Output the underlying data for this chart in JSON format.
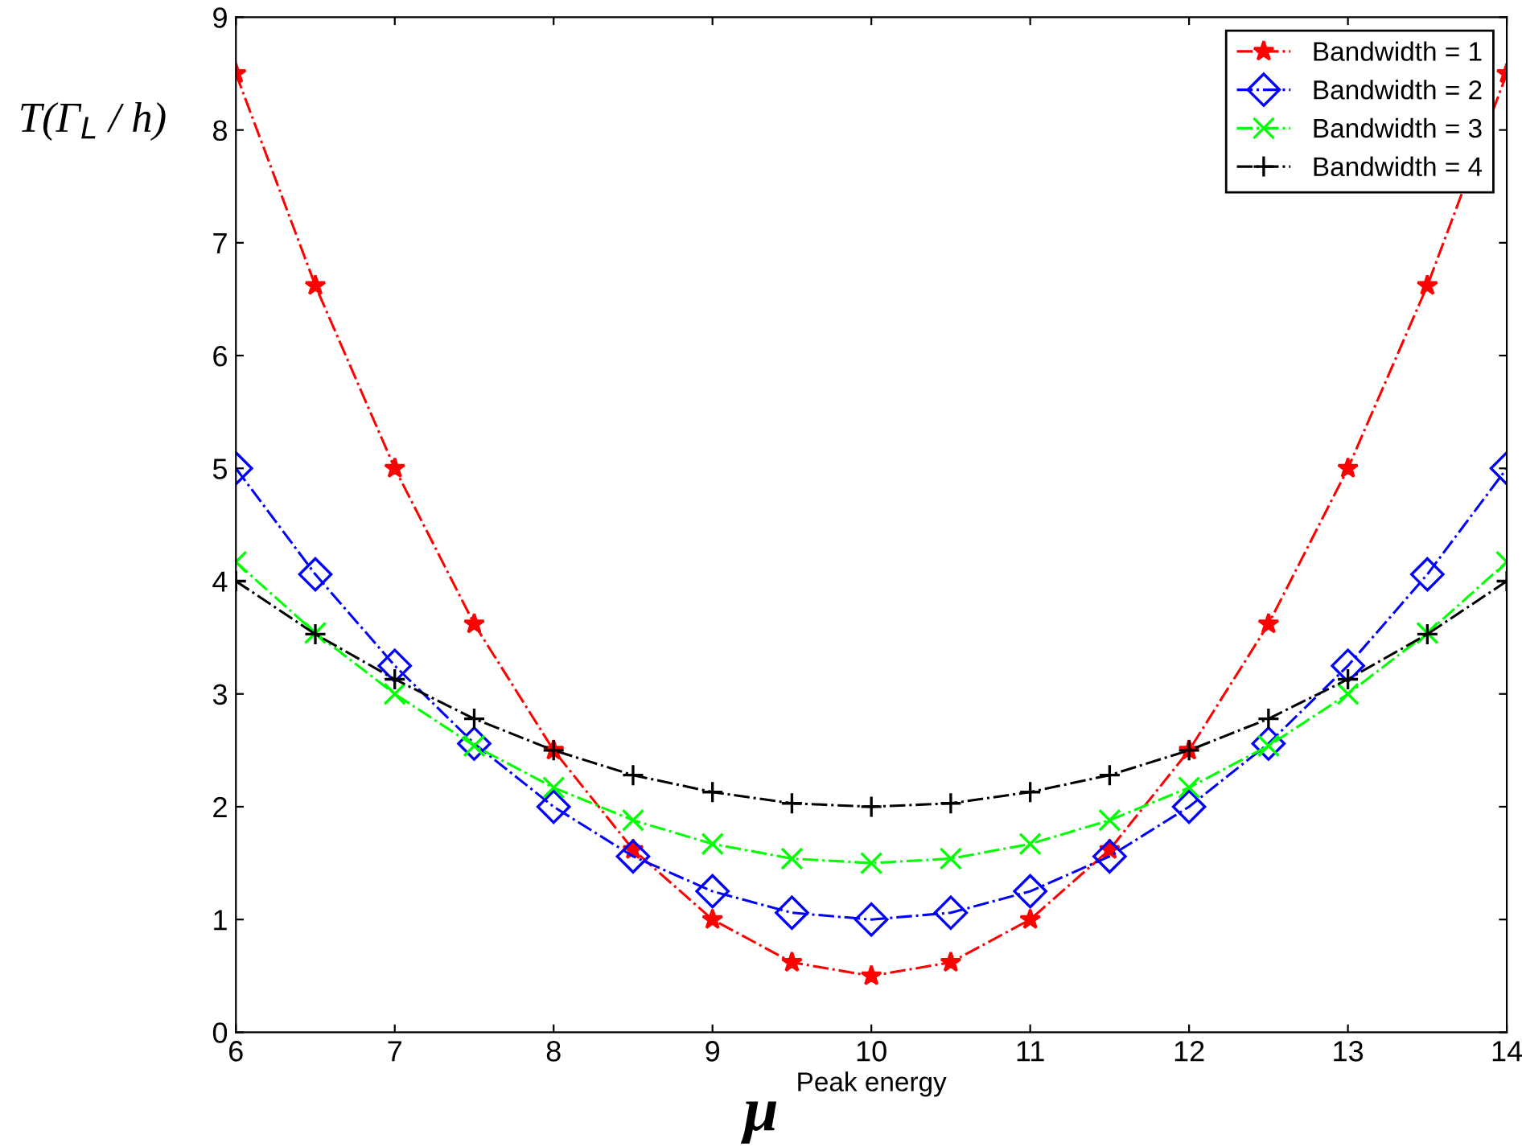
{
  "chart_data": {
    "type": "line",
    "xlabel": "Peak energy",
    "ylabel": "T(Γ$_{L}$ / h)",
    "annotations": [
      "μ"
    ],
    "x": [
      6,
      6.5,
      7,
      7.5,
      8,
      8.5,
      9,
      9.5,
      10,
      10.5,
      11,
      11.5,
      12,
      12.5,
      13,
      13.5,
      14
    ],
    "series": [
      {
        "name": "Bandwidth = 1",
        "color": "#ff0000",
        "marker": "star",
        "values": [
          8.5,
          6.62,
          5,
          3.62,
          2.5,
          1.62,
          1,
          0.62,
          0.5,
          0.62,
          1,
          1.62,
          2.5,
          3.62,
          5,
          6.62,
          8.5
        ]
      },
      {
        "name": "Bandwidth = 2",
        "color": "#0000ff",
        "marker": "diamond",
        "values": [
          5,
          4.06,
          3.25,
          2.56,
          2,
          1.56,
          1.25,
          1.06,
          1,
          1.06,
          1.25,
          1.56,
          2,
          2.56,
          3.25,
          4.06,
          5
        ]
      },
      {
        "name": "Bandwidth = 3",
        "color": "#00ff00",
        "marker": "cross",
        "values": [
          4.17,
          3.54,
          3,
          2.54,
          2.17,
          1.88,
          1.67,
          1.54,
          1.5,
          1.54,
          1.67,
          1.88,
          2.17,
          2.54,
          3,
          3.54,
          4.17
        ]
      },
      {
        "name": "Bandwidth = 4",
        "color": "#000000",
        "marker": "plus",
        "values": [
          4,
          3.53,
          3.13,
          2.78,
          2.5,
          2.28,
          2.13,
          2.03,
          2,
          2.03,
          2.13,
          2.28,
          2.5,
          2.78,
          3.13,
          3.53,
          4
        ]
      }
    ],
    "xlim": [
      6,
      14
    ],
    "xticks": [
      6,
      7,
      8,
      9,
      10,
      11,
      12,
      13,
      14
    ],
    "ylim": [
      0,
      9
    ],
    "yticks": [
      0,
      1,
      2,
      3,
      4,
      5,
      6,
      7,
      8,
      9
    ],
    "grid": false,
    "legend": "top right",
    "line_style": "dashdot"
  }
}
